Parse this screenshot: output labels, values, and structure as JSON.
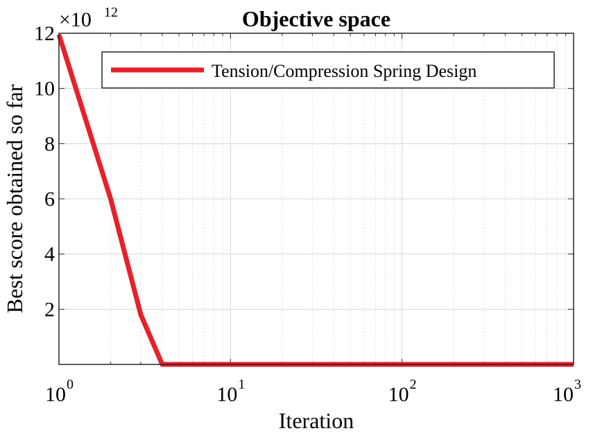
{
  "chart_data": {
    "type": "line",
    "title": "Objective space",
    "xlabel": "Iteration",
    "ylabel": "Best score obtained so far",
    "x_scale": "log",
    "xlim": [
      1,
      1000
    ],
    "ylim": [
      0,
      12
    ],
    "y_multiplier_label": "×10",
    "y_multiplier_exponent": "12",
    "x_ticks": [
      {
        "value": 1,
        "base": "10",
        "exp": "0"
      },
      {
        "value": 10,
        "base": "10",
        "exp": "1"
      },
      {
        "value": 100,
        "base": "10",
        "exp": "2"
      },
      {
        "value": 1000,
        "base": "10",
        "exp": "3"
      }
    ],
    "y_ticks": [
      {
        "value": 2,
        "label": "2"
      },
      {
        "value": 4,
        "label": "4"
      },
      {
        "value": 6,
        "label": "6"
      },
      {
        "value": 8,
        "label": "8"
      },
      {
        "value": 10,
        "label": "10"
      },
      {
        "value": 12,
        "label": "12"
      }
    ],
    "grid": true,
    "legend_position": "top-right",
    "series": [
      {
        "name": "Tension/Compression Spring Design",
        "color": "#e8202a",
        "x": [
          1,
          2,
          3,
          4,
          1000
        ],
        "y": [
          11.95,
          6.0,
          1.8,
          0.0,
          0.0
        ]
      }
    ]
  }
}
